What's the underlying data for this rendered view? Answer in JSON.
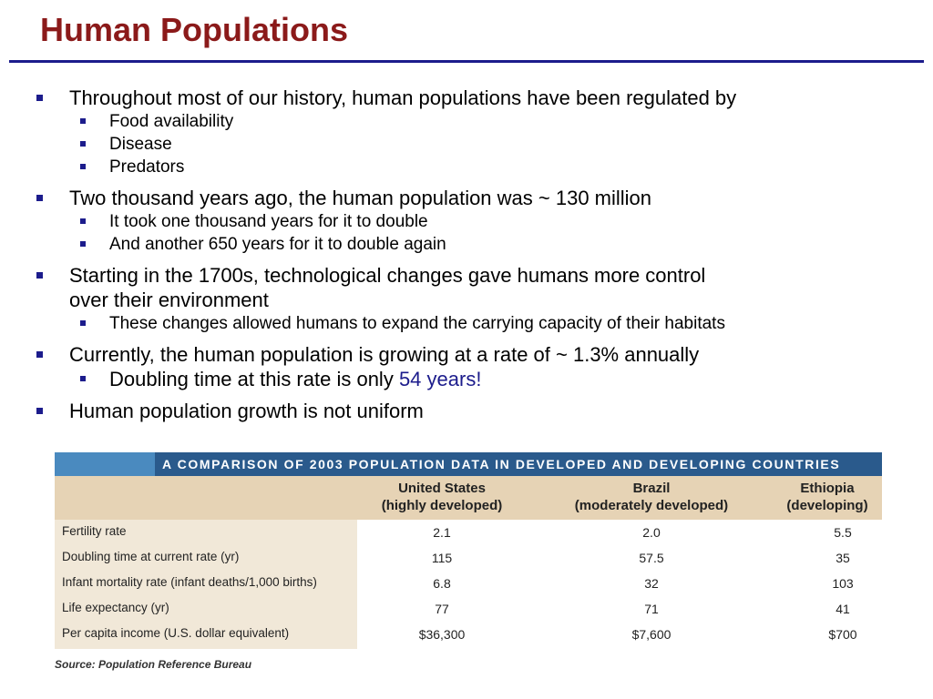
{
  "title": "Human Populations",
  "bullets": {
    "b1": "Throughout most of our history, human populations have been regulated by",
    "b1_sub": [
      "Food availability",
      "Disease",
      "Predators"
    ],
    "b2": "Two thousand years ago, the human population was ~ 130 million",
    "b2_sub": [
      "It took one thousand years for it to double",
      "And another 650 years for it to double again"
    ],
    "b3_line1": "Starting in the 1700s, technological changes gave humans more control",
    "b3_line2": "over their environment",
    "b3_sub": [
      "These changes allowed humans to expand the carrying capacity of their habitats"
    ],
    "b4": "Currently, the human population is growing at a rate of ~ 1.3% annually",
    "b4_sub_prefix": "Doubling time at this rate is only ",
    "b4_sub_highlight": "54 years!",
    "b5": "Human population growth is not uniform"
  },
  "table": {
    "caption": "A COMPARISON OF 2003 POPULATION DATA IN DEVELOPED AND DEVELOPING COUNTRIES",
    "columns": [
      {
        "name": "United States",
        "sub": "(highly developed)"
      },
      {
        "name": "Brazil",
        "sub": "(moderately developed)"
      },
      {
        "name": "Ethiopia",
        "sub": "(developing)"
      }
    ],
    "rows": [
      {
        "label": "Fertility rate",
        "values": [
          "2.1",
          "2.0",
          "5.5"
        ]
      },
      {
        "label": "Doubling time at current rate (yr)",
        "values": [
          "115",
          "57.5",
          "35"
        ]
      },
      {
        "label": "Infant mortality rate (infant deaths/1,000 births)",
        "values": [
          "6.8",
          "32",
          "103"
        ]
      },
      {
        "label": "Life expectancy (yr)",
        "values": [
          "77",
          "71",
          "41"
        ]
      },
      {
        "label": "Per capita income (U.S. dollar equivalent)",
        "values": [
          "$36,300",
          "$7,600",
          "$700"
        ]
      }
    ],
    "source": "Source: Population Reference Bureau"
  },
  "colors": {
    "title": "#8b1a1a",
    "bullet": "#1c1c8c",
    "table_header": "#2a5a8c"
  }
}
